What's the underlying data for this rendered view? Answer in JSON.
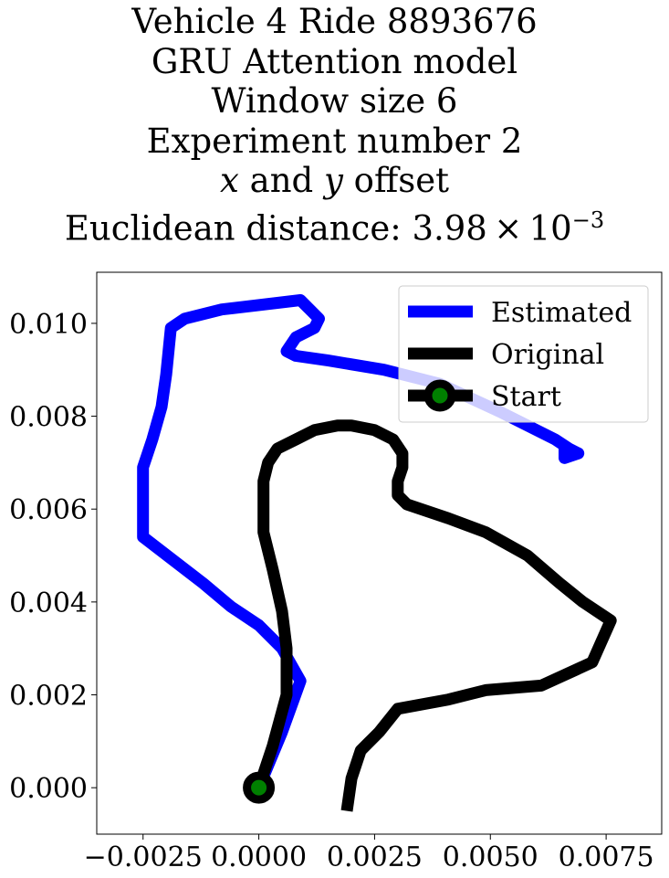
{
  "title_lines": [
    "Vehicle 4 Ride 8893676",
    "GRU Attention model",
    "Window size 6",
    "Experiment number 2"
  ],
  "title_offset": {
    "x": "x",
    "and": " and ",
    "y": "y",
    "rest": " offset"
  },
  "title_distance": {
    "prefix": "Euclidean distance: 3.98 × 10",
    "exponent": "−3"
  },
  "chart_data": {
    "type": "line",
    "xlim": [
      -0.0035,
      0.0087
    ],
    "ylim": [
      -0.001,
      0.0111
    ],
    "xticks": [
      -0.0025,
      0.0,
      0.0025,
      0.005,
      0.0075
    ],
    "xtick_labels": [
      "−0.0025",
      "0.0000",
      "0.0025",
      "0.0050",
      "0.0075"
    ],
    "yticks": [
      0.0,
      0.002,
      0.004,
      0.006,
      0.008,
      0.01
    ],
    "ytick_labels": [
      "0.000",
      "0.002",
      "0.004",
      "0.006",
      "0.008",
      "0.010"
    ],
    "grid": false,
    "legend_position": "upper-right",
    "series": [
      {
        "name": "Estimated",
        "color": "#0000ff",
        "x": [
          0.0,
          0.0005,
          0.0009,
          0.0005,
          0.0,
          -0.0006,
          -0.0012,
          -0.0025,
          -0.0025,
          -0.0023,
          -0.0021,
          -0.002,
          -0.0019,
          -0.0016,
          -0.0008,
          0.0009,
          0.0013,
          0.0012,
          0.0008,
          0.0006,
          0.0008,
          0.0015,
          0.0027,
          0.0039,
          0.0052,
          0.0064,
          0.0067,
          0.0069,
          0.0066,
          0.0066,
          0.0069
        ],
        "y": [
          0.0,
          0.0012,
          0.0023,
          0.003,
          0.0035,
          0.0039,
          0.0044,
          0.0054,
          0.0069,
          0.0075,
          0.0082,
          0.0089,
          0.0099,
          0.0101,
          0.0103,
          0.0105,
          0.0101,
          0.0099,
          0.0097,
          0.0094,
          0.0093,
          0.0092,
          0.009,
          0.0087,
          0.0081,
          0.0075,
          0.0073,
          0.0072,
          0.0071,
          0.0073,
          0.0072
        ]
      },
      {
        "name": "Original",
        "color": "#000000",
        "x": [
          0.0,
          0.0003,
          0.0006,
          0.0006,
          0.0005,
          0.0003,
          0.0001,
          0.0001,
          0.0001,
          0.0002,
          0.0004,
          0.0008,
          0.0012,
          0.0017,
          0.002,
          0.0025,
          0.0029,
          0.0031,
          0.0031,
          0.003,
          0.003,
          0.0032,
          0.0041,
          0.0049,
          0.0058,
          0.0065,
          0.007,
          0.0076,
          0.0072,
          0.0061,
          0.0049,
          0.0041,
          0.003,
          0.0026,
          0.0022,
          0.002,
          0.0019
        ],
        "y": [
          0.0,
          0.0009,
          0.002,
          0.003,
          0.0038,
          0.0047,
          0.0055,
          0.0061,
          0.0066,
          0.007,
          0.0073,
          0.0075,
          0.0077,
          0.0078,
          0.0078,
          0.0077,
          0.0075,
          0.0072,
          0.0069,
          0.0066,
          0.0063,
          0.0061,
          0.0058,
          0.0055,
          0.005,
          0.0044,
          0.004,
          0.0036,
          0.0027,
          0.0022,
          0.0021,
          0.0019,
          0.0017,
          0.0012,
          0.0008,
          0.0002,
          -0.0005
        ]
      }
    ],
    "start": {
      "name": "Start",
      "x": 0.0,
      "y": 0.0,
      "face_color": "#008000",
      "edge_color": "#000000"
    }
  }
}
